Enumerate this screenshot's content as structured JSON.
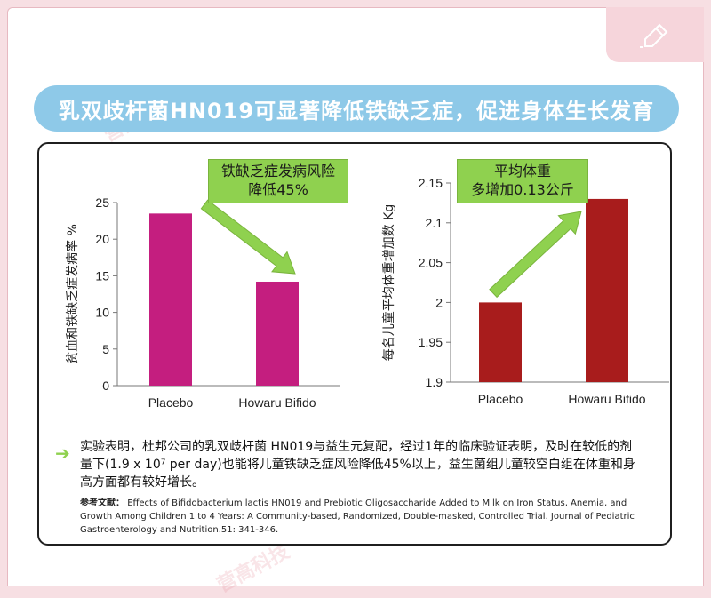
{
  "banner": {
    "title": "乳双歧杆菌HN019可显著降低铁缺乏症，促进身体生长发育"
  },
  "watermark": {
    "text": "营高科技"
  },
  "charts": {
    "chart1_callout_line1": "铁缺乏症发病风险",
    "chart1_callout_line2": "降低45%",
    "chart2_callout_line1": "平均体重",
    "chart2_callout_line2": "多增加0.13公斤"
  },
  "description": "实验表明，杜邦公司的乳双歧杆菌 HN019与益生元复配，经过1年的临床验证表明，及时在较低的剂量下(1.9 x 10⁷ per day)也能将儿童铁缺乏症风险降低45%以上，益生菌组儿童较空白组在体重和身高方面都有较好增长。",
  "reference": {
    "label": "参考文献：",
    "text": "Effects of Bifidobacterium lactis HN019 and Prebiotic Oligosaccharide Added to Milk on Iron Status, Anemia, and Growth Among Children 1 to 4 Years: A Community-based, Randomized, Double-masked, Controlled Trial. Journal of Pediatric Gastroenterology and Nutrition.51: 341-346."
  },
  "icons": {
    "corner": "pen-icon",
    "bullet": "arrow-right-icon"
  },
  "colors": {
    "banner": "#8ec9e8",
    "bar1": "#c41e7f",
    "bar2": "#a81c1c",
    "callout": "#8fd14f"
  },
  "chart_data": [
    {
      "type": "bar",
      "categories": [
        "Placebo",
        "Howaru Bifido"
      ],
      "values": [
        23.5,
        14.2
      ],
      "ylabel": "贫血和铁缺乏症发病率 %",
      "ylim": [
        0,
        25
      ],
      "yticks": [
        0,
        5,
        10,
        15,
        20,
        25
      ],
      "grid": false
    },
    {
      "type": "bar",
      "categories": [
        "Placebo",
        "Howaru Bifido"
      ],
      "values": [
        2.0,
        2.13
      ],
      "ylabel": "每名儿童平均体重增加数 Kg",
      "ylim": [
        1.9,
        2.15
      ],
      "yticks": [
        1.9,
        1.95,
        2,
        2.05,
        2.1,
        2.15
      ],
      "grid": false
    }
  ]
}
